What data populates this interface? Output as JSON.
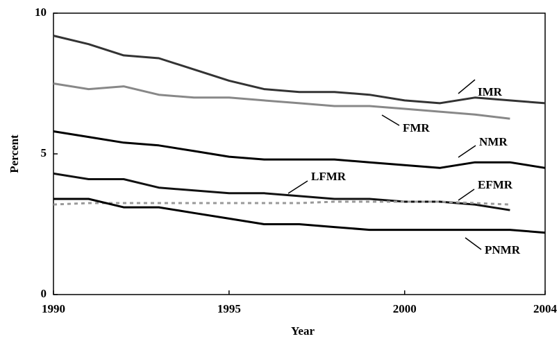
{
  "chart_data": {
    "type": "line",
    "xlabel": "Year",
    "ylabel": "Percent",
    "x": [
      1990,
      1991,
      1992,
      1993,
      1994,
      1995,
      1996,
      1997,
      1998,
      1999,
      2000,
      2001,
      2002,
      2003,
      2004
    ],
    "xlim": [
      1990,
      2004
    ],
    "xticks": [
      1990,
      1995,
      2000,
      2004
    ],
    "ylim": [
      0,
      10
    ],
    "yticks": [
      0,
      5,
      10
    ],
    "series": [
      {
        "name": "IMR",
        "color": "#333333",
        "style": "solid",
        "values": [
          9.2,
          8.9,
          8.5,
          8.4,
          8.0,
          7.6,
          7.3,
          7.2,
          7.2,
          7.1,
          6.9,
          6.8,
          7.0,
          6.9,
          6.8
        ]
      },
      {
        "name": "FMR",
        "color": "#888888",
        "style": "solid",
        "values": [
          7.5,
          7.3,
          7.4,
          7.1,
          7.0,
          7.0,
          6.9,
          6.8,
          6.7,
          6.7,
          6.6,
          6.5,
          6.4,
          6.25,
          null
        ]
      },
      {
        "name": "NMR",
        "color": "#000000",
        "style": "solid",
        "values": [
          5.8,
          5.6,
          5.4,
          5.3,
          5.1,
          4.9,
          4.8,
          4.8,
          4.8,
          4.7,
          4.6,
          4.5,
          4.7,
          4.7,
          4.5
        ]
      },
      {
        "name": "LFMR",
        "color": "#111111",
        "style": "solid",
        "values": [
          4.3,
          4.1,
          4.1,
          3.8,
          3.7,
          3.6,
          3.6,
          3.5,
          3.4,
          3.4,
          3.3,
          3.3,
          3.2,
          3.0,
          null
        ]
      },
      {
        "name": "EFMR",
        "color": "#999999",
        "style": "dotted",
        "values": [
          3.2,
          3.25,
          3.25,
          3.25,
          3.25,
          3.25,
          3.25,
          3.25,
          3.3,
          3.3,
          3.3,
          3.3,
          3.25,
          3.2,
          null
        ]
      },
      {
        "name": "PNMR",
        "color": "#000000",
        "style": "solid",
        "values": [
          3.4,
          3.4,
          3.1,
          3.1,
          2.9,
          2.7,
          2.5,
          2.5,
          2.4,
          2.3,
          2.3,
          2.3,
          2.3,
          2.3,
          2.2
        ]
      }
    ]
  }
}
